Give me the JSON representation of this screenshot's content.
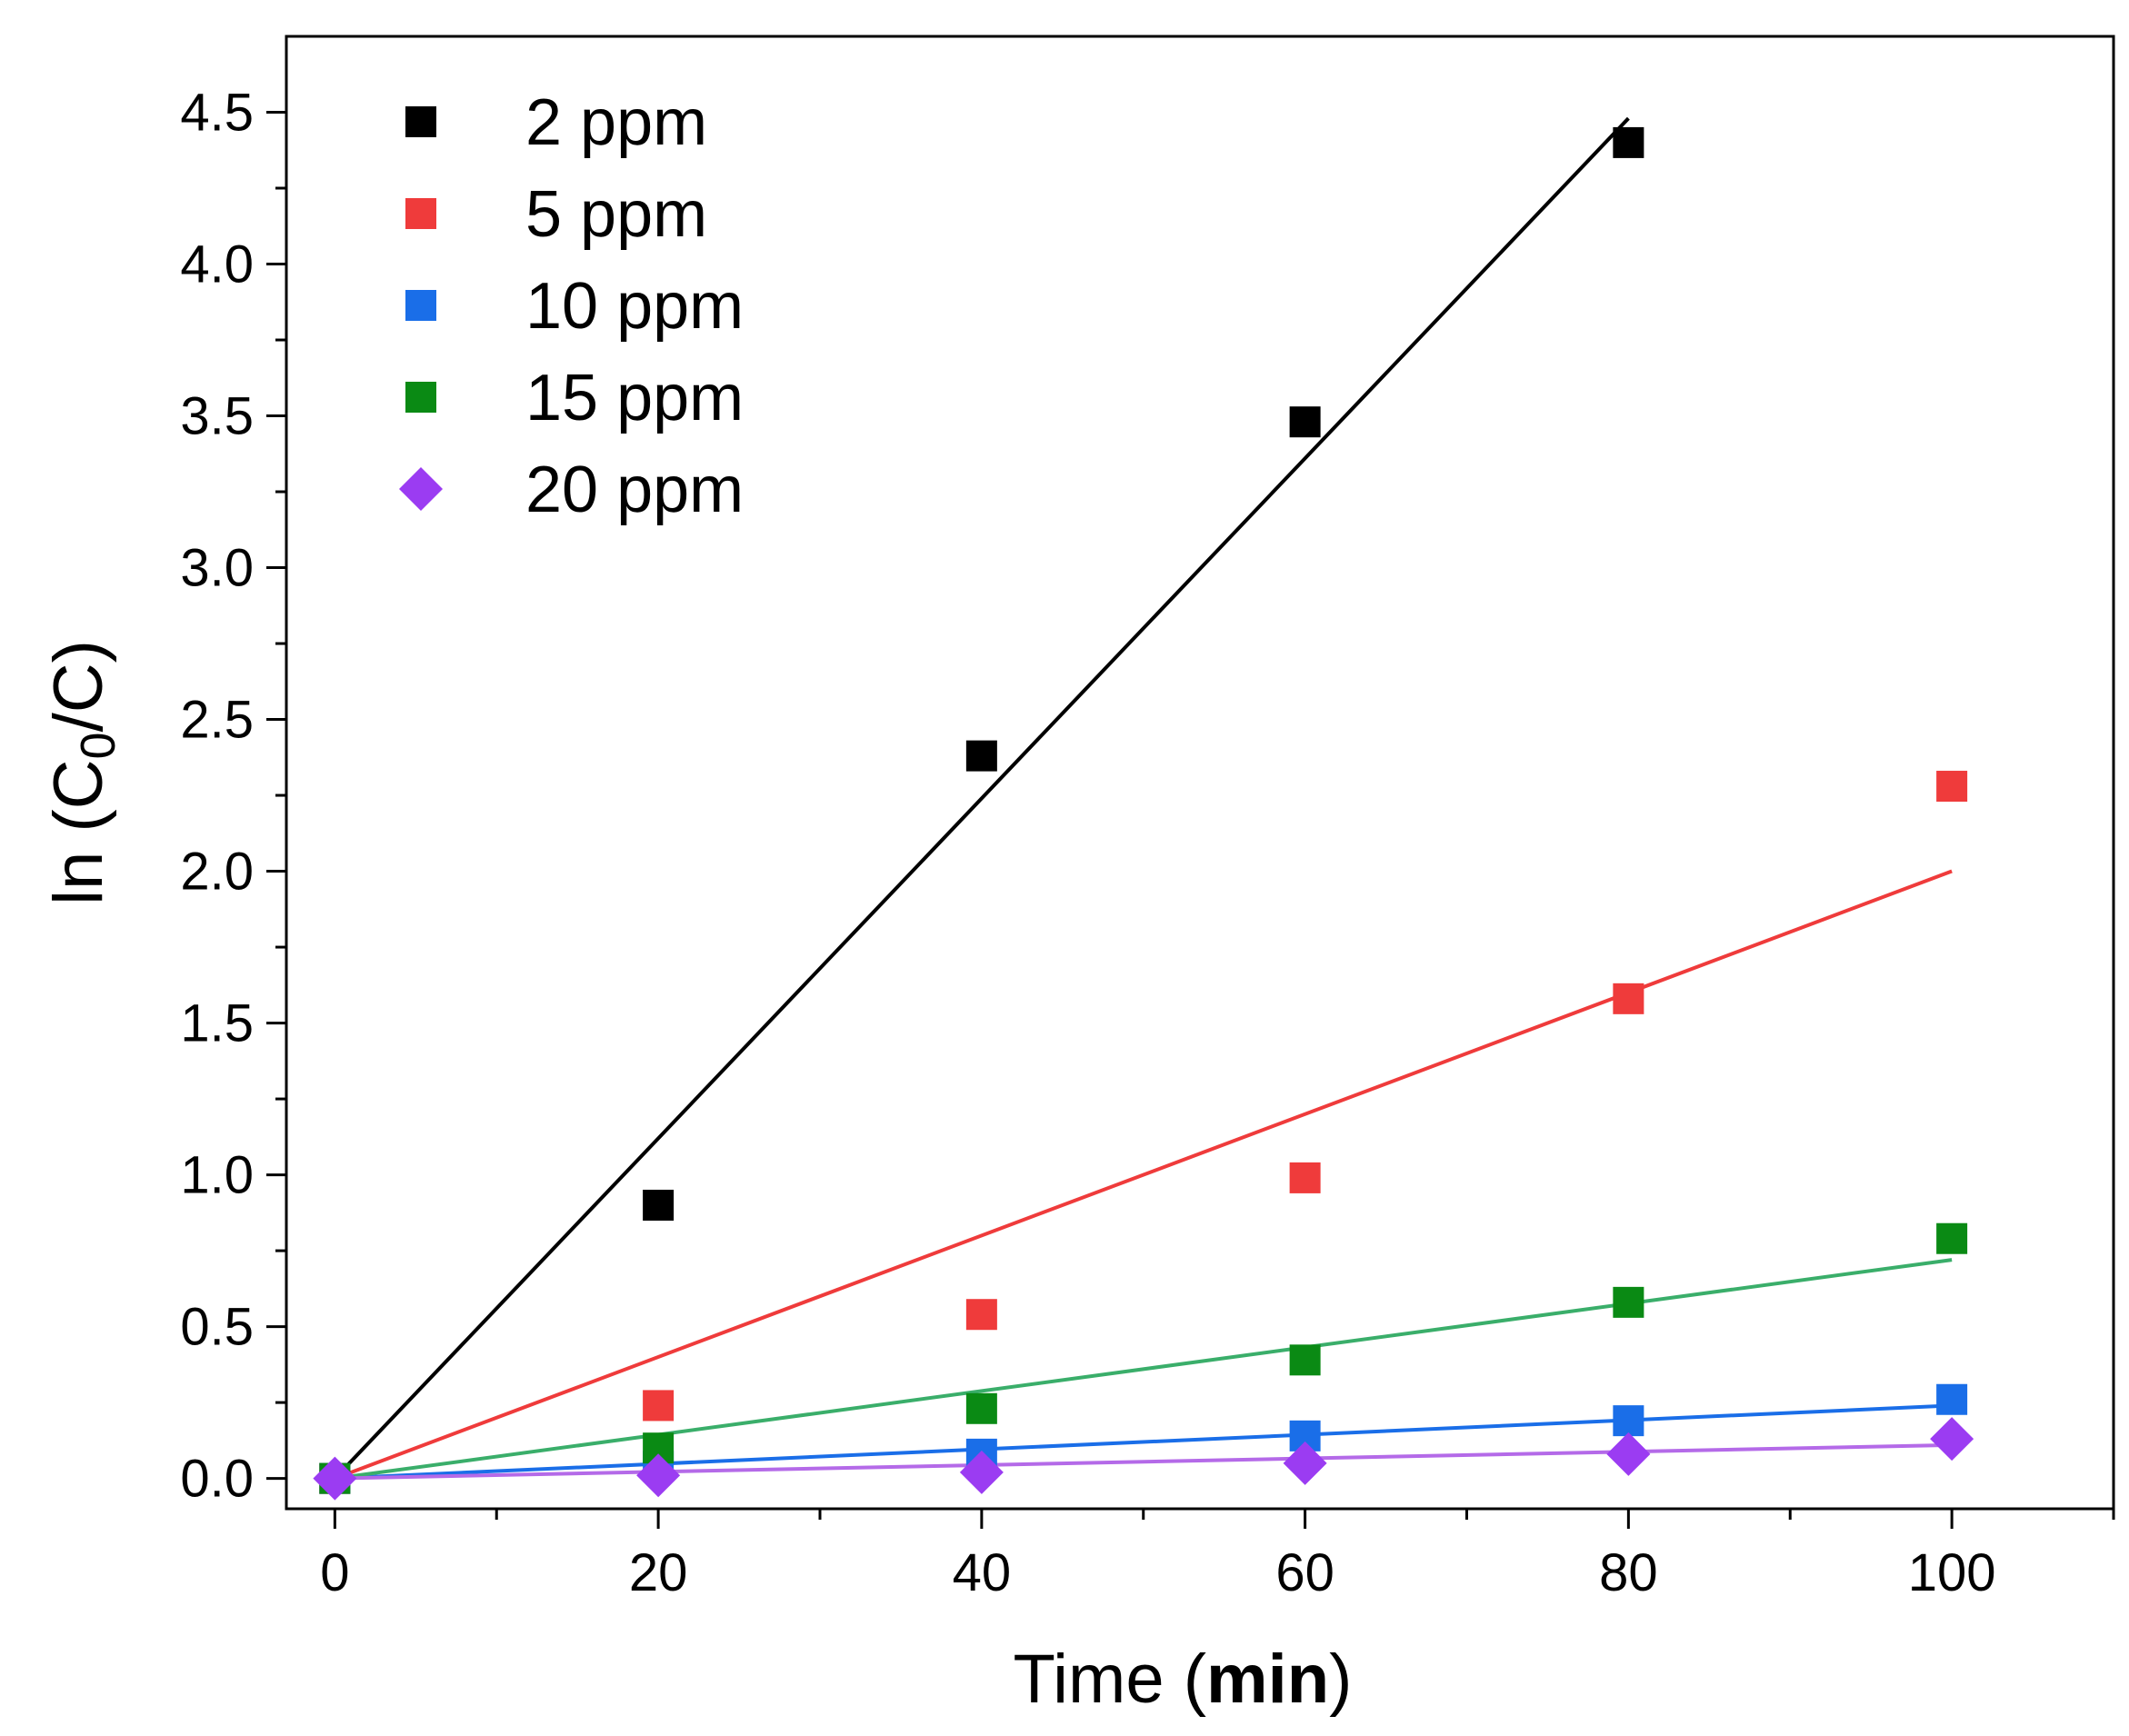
{
  "chart_data": {
    "type": "scatter",
    "title": "",
    "xlabel": {
      "prefix": "Time (",
      "bold": "min",
      "suffix": ")"
    },
    "ylabel": {
      "prefix": "ln (C",
      "subscript": "0",
      "suffix": "/C)"
    },
    "xlim": [
      -3,
      110
    ],
    "ylim": [
      -0.1,
      4.75
    ],
    "x_ticks": [
      0,
      20,
      40,
      60,
      80,
      100
    ],
    "x_tick_labels": [
      "0",
      "20",
      "40",
      "60",
      "80",
      "100"
    ],
    "x_minor_ticks": [
      10,
      30,
      50,
      70,
      90,
      110
    ],
    "y_ticks": [
      0.0,
      0.5,
      1.0,
      1.5,
      2.0,
      2.5,
      3.0,
      3.5,
      4.0,
      4.5
    ],
    "y_tick_labels": [
      "0.0",
      "0.5",
      "1.0",
      "1.5",
      "2.0",
      "2.5",
      "3.0",
      "3.5",
      "4.0",
      "4.5"
    ],
    "y_minor_ticks": [
      0.25,
      0.75,
      1.25,
      1.75,
      2.25,
      2.75,
      3.25,
      3.75,
      4.25
    ],
    "legend_position": "top-left",
    "series": [
      {
        "name": "2 ppm",
        "marker": "square",
        "color": "#000000",
        "fit_color": "#000000",
        "x": [
          0,
          20,
          40,
          60,
          80
        ],
        "y": [
          0.0,
          0.9,
          2.38,
          3.48,
          4.4
        ],
        "fit": {
          "x": [
            0,
            80
          ],
          "y": [
            0.0,
            4.48
          ]
        }
      },
      {
        "name": "5 ppm",
        "marker": "square",
        "color": "#ef3b3b",
        "fit_color": "#ef3b3b",
        "x": [
          0,
          20,
          40,
          60,
          80,
          100
        ],
        "y": [
          0.0,
          0.24,
          0.54,
          0.99,
          1.58,
          2.28
        ],
        "fit": {
          "x": [
            0,
            100
          ],
          "y": [
            0.0,
            2.0
          ]
        }
      },
      {
        "name": "10 ppm",
        "marker": "square",
        "color": "#1a6ee8",
        "fit_color": "#1a6ee8",
        "x": [
          0,
          20,
          40,
          60,
          80,
          100
        ],
        "y": [
          0.0,
          0.04,
          0.08,
          0.14,
          0.19,
          0.26
        ],
        "fit": {
          "x": [
            0,
            100
          ],
          "y": [
            0.0,
            0.24
          ]
        }
      },
      {
        "name": "15 ppm",
        "marker": "square",
        "color": "#0a8a14",
        "fit_color": "#3aae6a",
        "x": [
          0,
          20,
          40,
          60,
          80,
          100
        ],
        "y": [
          0.0,
          0.1,
          0.23,
          0.39,
          0.58,
          0.79
        ],
        "fit": {
          "x": [
            0,
            100
          ],
          "y": [
            0.0,
            0.72
          ]
        }
      },
      {
        "name": "20 ppm",
        "marker": "diamond",
        "color": "#9b3cf2",
        "fit_color": "#b46ae8",
        "x": [
          0,
          20,
          40,
          60,
          80,
          100
        ],
        "y": [
          0.0,
          0.01,
          0.02,
          0.05,
          0.08,
          0.13
        ],
        "fit": {
          "x": [
            0,
            100
          ],
          "y": [
            0.0,
            0.11
          ]
        }
      }
    ]
  }
}
